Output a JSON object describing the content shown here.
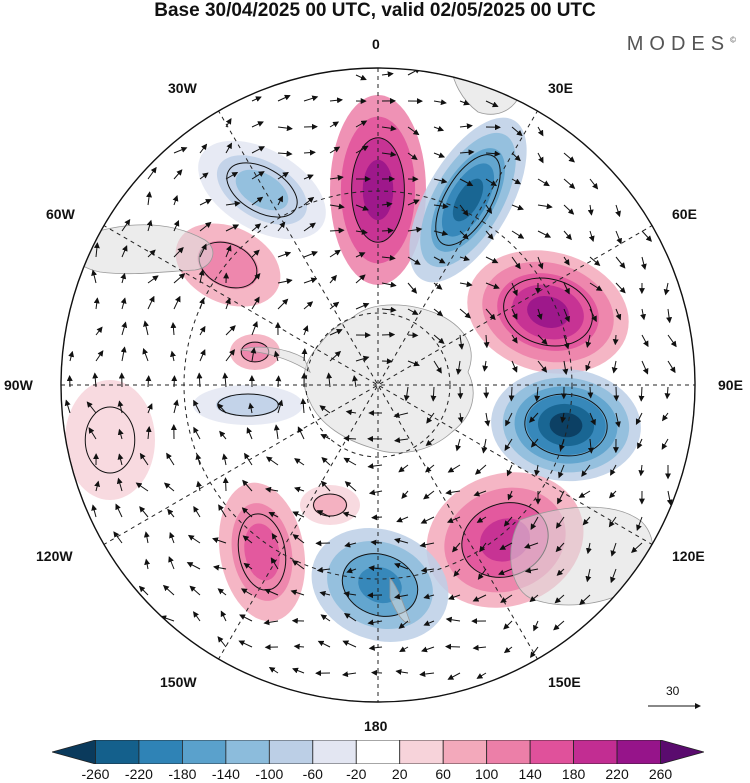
{
  "title": "Base 30/04/2025 00 UTC, valid 02/05/2025 00 UTC",
  "brand": "MODES",
  "brand_mark": "©",
  "lon_labels": {
    "north": "0",
    "nne": "30E",
    "ene": "60E",
    "east": "90E",
    "ese": "120E",
    "sse": "150E",
    "south": "180",
    "ssw": "150W",
    "wsw": "120W",
    "west": "90W",
    "wnw": "60W",
    "nnw": "30W"
  },
  "reference_vector": "30",
  "colorbar": {
    "ticks": [
      "-260",
      "-220",
      "-180",
      "-140",
      "-100",
      "-60",
      "-20",
      "20",
      "60",
      "100",
      "140",
      "180",
      "220",
      "260"
    ],
    "colors": [
      "#0a3a5c",
      "#14608c",
      "#2f83b6",
      "#5aa1cc",
      "#8cbcdc",
      "#bccfe6",
      "#e3e6f2",
      "#ffffff",
      "#f7d3da",
      "#f3a9bb",
      "#ec7fa8",
      "#e0519b",
      "#c22d92",
      "#96148a",
      "#5a0b6e"
    ]
  }
}
